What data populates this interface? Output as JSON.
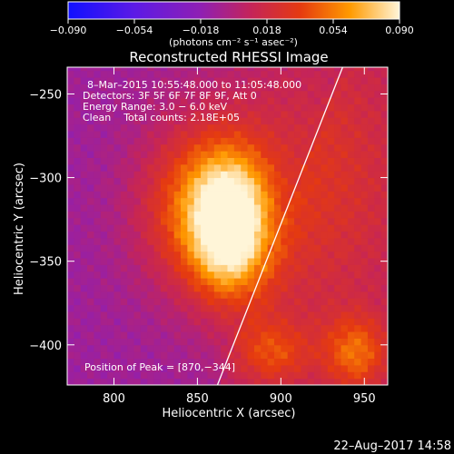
{
  "chart_data": {
    "type": "heatmap",
    "title": "Reconstructed RHESSI Image",
    "xlabel": "Heliocentric X (arcsec)",
    "ylabel": "Heliocentric Y (arcsec)",
    "xlim": [
      772,
      964
    ],
    "ylim": [
      -424,
      -234
    ],
    "xticks": [
      800,
      850,
      900,
      950
    ],
    "yticks": [
      -250,
      -300,
      -350,
      -400
    ],
    "colorbar": {
      "ticks": [
        "−0.090",
        "−0.054",
        "−0.018",
        "0.018",
        "0.054",
        "0.090"
      ],
      "range": [
        -0.09,
        0.09
      ],
      "unit": "(photons cm⁻² s⁻¹ asec⁻²)",
      "colors": [
        "#1010ff",
        "#7a1fd6",
        "#b3217f",
        "#e02a10",
        "#ff8a00",
        "#fff5d8"
      ]
    },
    "annotations": {
      "time": "8–Mar–2015 10:55:48.000 to 11:05:48.000",
      "detectors": "Detectors: 3F 5F 6F 7F 8F 9F, Att 0",
      "energy": "Energy Range: 3.0 − 6.0 keV",
      "clean": "Clean    Total counts: 2.18E+05",
      "peak": "Position of Peak = [870,−344]"
    },
    "peak": [
      870,
      -344
    ],
    "sources": [
      {
        "x": 870,
        "y": -330,
        "amp": 0.085,
        "sx": 16,
        "sy": 28
      },
      {
        "x": 852,
        "y": -318,
        "amp": 0.055,
        "sx": 26,
        "sy": 34
      },
      {
        "x": 920,
        "y": -300,
        "amp": 0.03,
        "sx": 45,
        "sy": 70
      },
      {
        "x": 945,
        "y": -405,
        "amp": 0.045,
        "sx": 14,
        "sy": 16
      },
      {
        "x": 895,
        "y": -405,
        "amp": 0.035,
        "sx": 16,
        "sy": 14
      }
    ],
    "limb_line": [
      [
        862,
        -424
      ],
      [
        937,
        -234
      ]
    ],
    "footer": "22–Aug–2017 14:58"
  }
}
